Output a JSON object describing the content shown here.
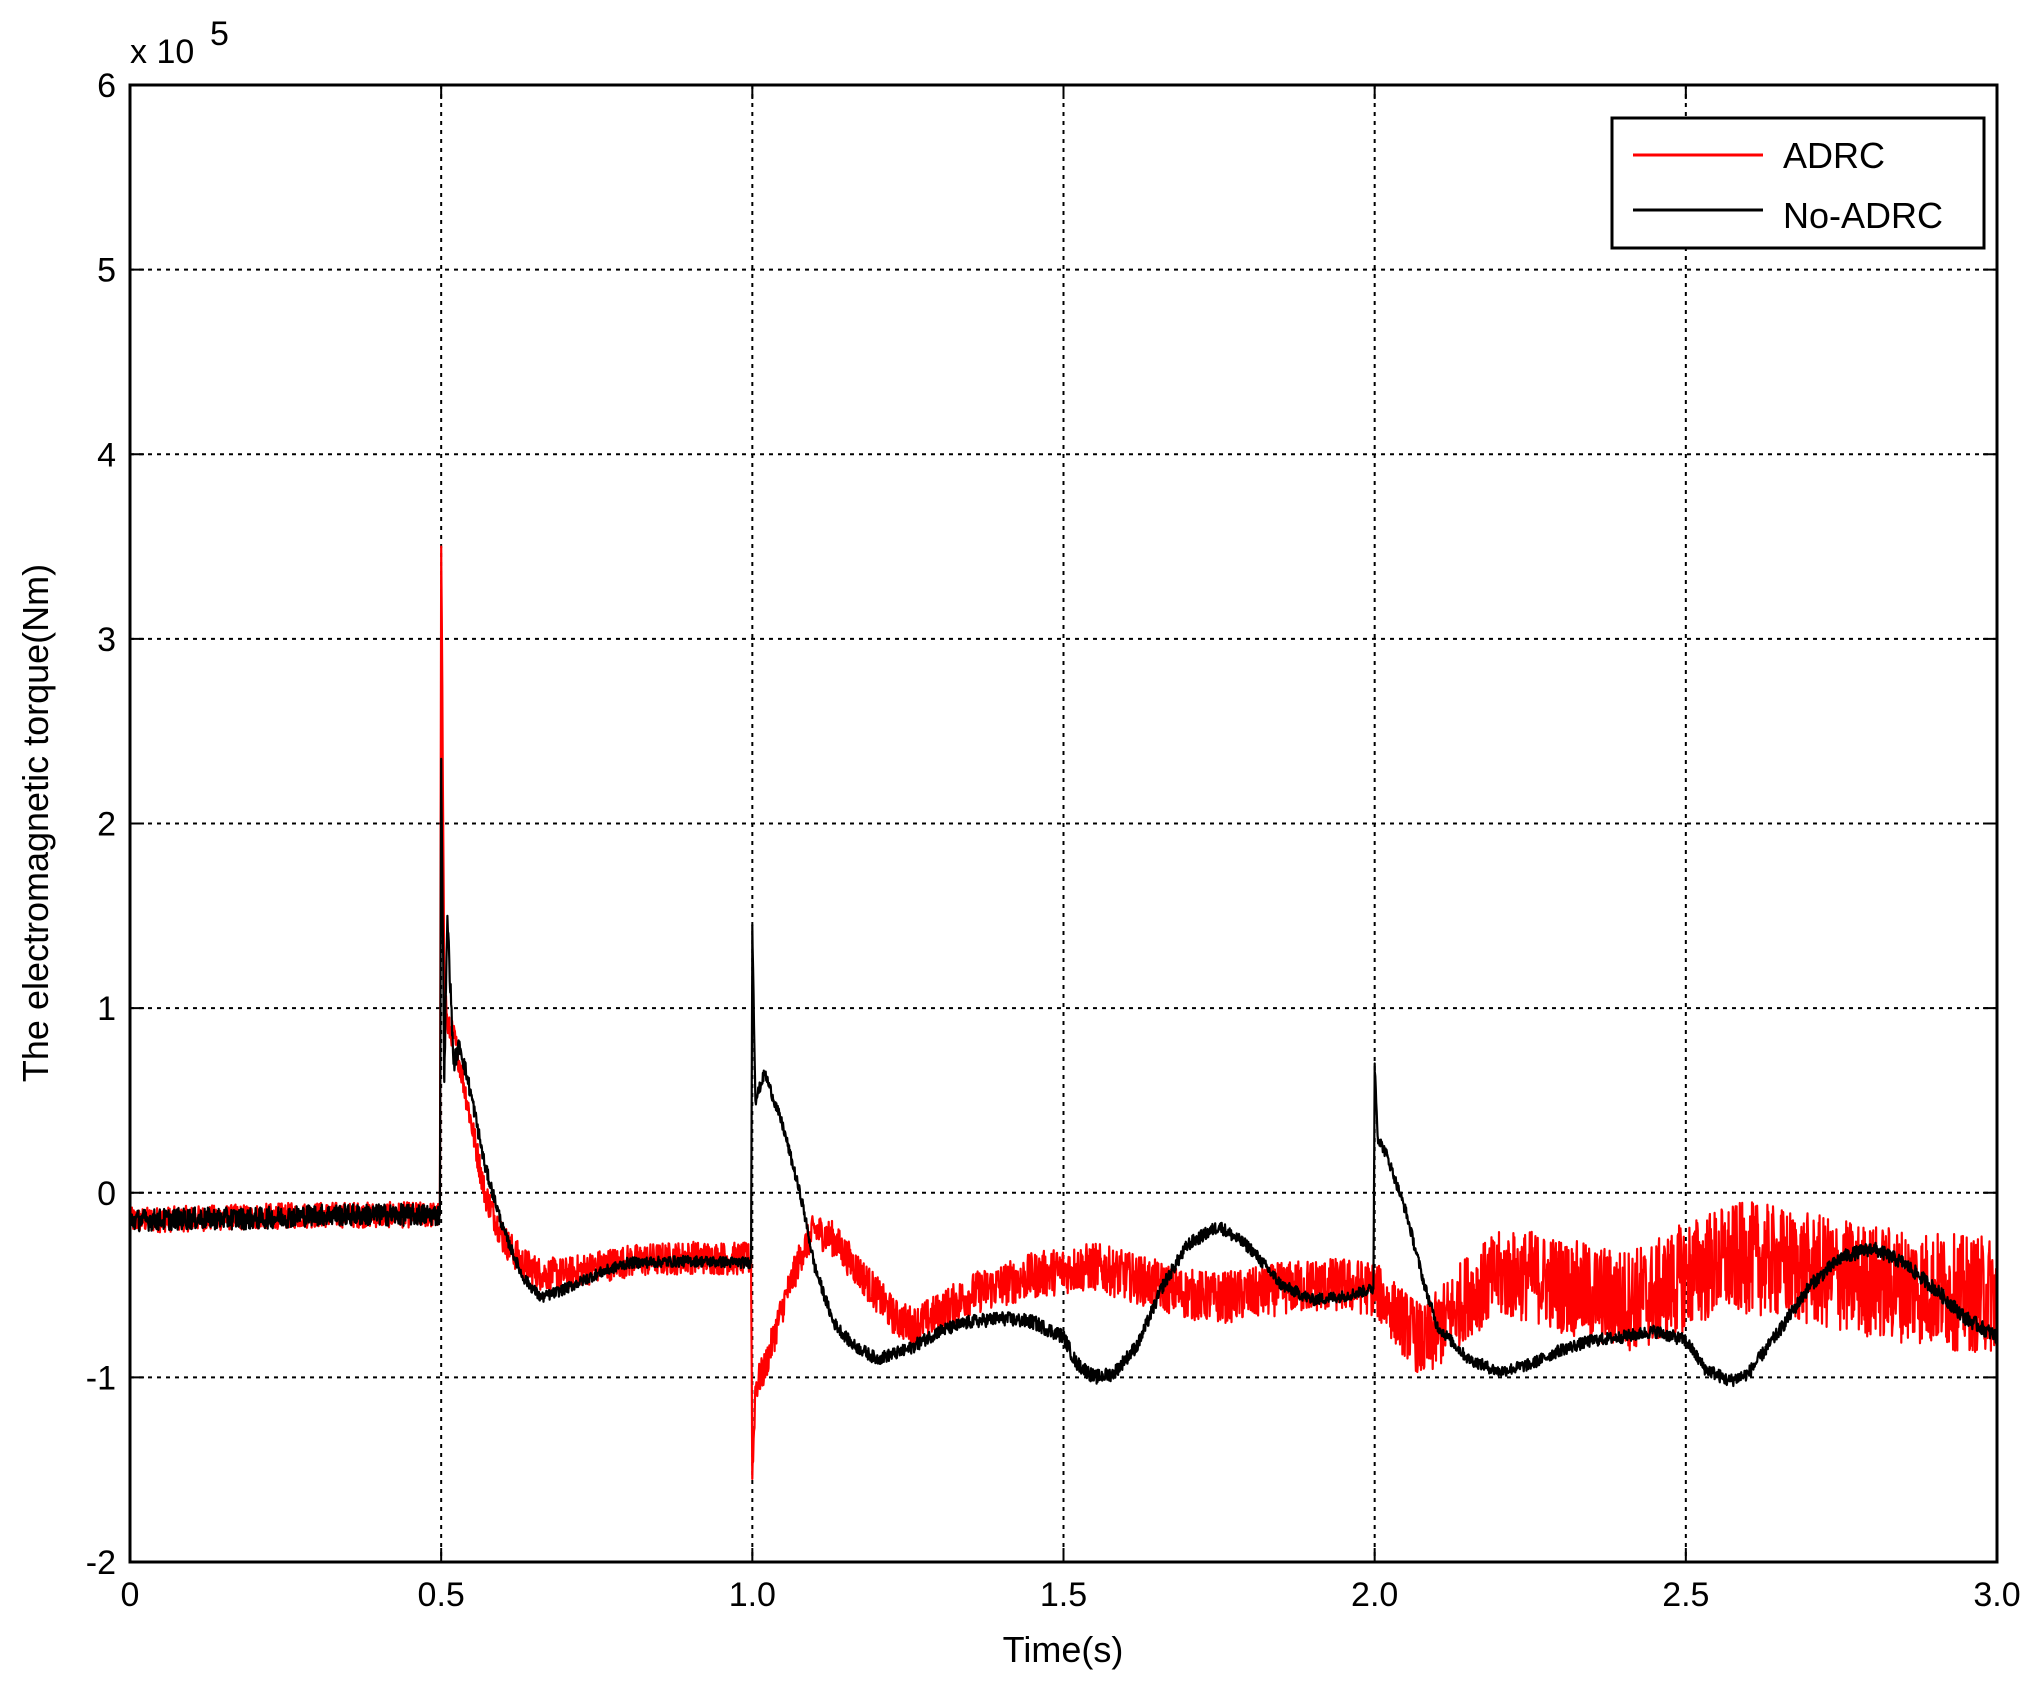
{
  "chart_data": {
    "type": "line",
    "title": "",
    "xlabel": "Time(s)",
    "ylabel": "The electromagnetic torque(Nm)",
    "y_multiplier_label": "x 10",
    "y_multiplier_exponent": "5",
    "xlim": [
      0,
      3
    ],
    "ylim": [
      -2,
      6
    ],
    "grid": true,
    "legend_position": "top-right",
    "x_ticks": [
      0,
      0.5,
      1.0,
      1.5,
      2.0,
      2.5,
      3.0
    ],
    "x_tick_labels": [
      "0",
      "0.5",
      "1.0",
      "1.5",
      "2.0",
      "2.5",
      "3.0"
    ],
    "y_ticks": [
      -2,
      -1,
      0,
      1,
      2,
      3,
      4,
      5,
      6
    ],
    "y_tick_labels": [
      "-2",
      "-1",
      "0",
      "1",
      "2",
      "3",
      "4",
      "5",
      "6"
    ],
    "series": [
      {
        "name": "ADRC",
        "color": "#ff0000",
        "points": [
          [
            0,
            -0.15
          ],
          [
            0.1,
            -0.14
          ],
          [
            0.2,
            -0.13
          ],
          [
            0.3,
            -0.12
          ],
          [
            0.4,
            -0.12
          ],
          [
            0.498,
            -0.12
          ],
          [
            0.5,
            3.5
          ],
          [
            0.505,
            1.2
          ],
          [
            0.51,
            0.9
          ],
          [
            0.52,
            0.85
          ],
          [
            0.53,
            0.7
          ],
          [
            0.55,
            0.35
          ],
          [
            0.57,
            0.0
          ],
          [
            0.6,
            -0.25
          ],
          [
            0.63,
            -0.38
          ],
          [
            0.66,
            -0.44
          ],
          [
            0.7,
            -0.44
          ],
          [
            0.75,
            -0.4
          ],
          [
            0.8,
            -0.37
          ],
          [
            0.9,
            -0.35
          ],
          [
            0.998,
            -0.36
          ],
          [
            1.0,
            -1.55
          ],
          [
            1.005,
            -1.05
          ],
          [
            1.02,
            -0.95
          ],
          [
            1.05,
            -0.6
          ],
          [
            1.08,
            -0.32
          ],
          [
            1.1,
            -0.2
          ],
          [
            1.13,
            -0.25
          ],
          [
            1.16,
            -0.38
          ],
          [
            1.2,
            -0.55
          ],
          [
            1.23,
            -0.68
          ],
          [
            1.26,
            -0.72
          ],
          [
            1.3,
            -0.65
          ],
          [
            1.35,
            -0.55
          ],
          [
            1.4,
            -0.5
          ],
          [
            1.45,
            -0.45
          ],
          [
            1.5,
            -0.42
          ],
          [
            1.55,
            -0.4
          ],
          [
            1.6,
            -0.45
          ],
          [
            1.65,
            -0.5
          ],
          [
            1.7,
            -0.55
          ],
          [
            1.75,
            -0.57
          ],
          [
            1.8,
            -0.55
          ],
          [
            1.85,
            -0.52
          ],
          [
            1.9,
            -0.5
          ],
          [
            1.95,
            -0.5
          ],
          [
            2.0,
            -0.52
          ],
          [
            2.04,
            -0.68
          ],
          [
            2.08,
            -0.82
          ],
          [
            2.1,
            -0.75
          ],
          [
            2.15,
            -0.55
          ],
          [
            2.2,
            -0.45
          ],
          [
            2.25,
            -0.45
          ],
          [
            2.3,
            -0.5
          ],
          [
            2.35,
            -0.55
          ],
          [
            2.4,
            -0.58
          ],
          [
            2.45,
            -0.55
          ],
          [
            2.5,
            -0.45
          ],
          [
            2.55,
            -0.38
          ],
          [
            2.6,
            -0.35
          ],
          [
            2.65,
            -0.38
          ],
          [
            2.7,
            -0.42
          ],
          [
            2.75,
            -0.45
          ],
          [
            2.8,
            -0.48
          ],
          [
            2.85,
            -0.5
          ],
          [
            2.9,
            -0.52
          ],
          [
            2.95,
            -0.55
          ],
          [
            3.0,
            -0.55
          ]
        ],
        "noise_amplitude": [
          [
            0,
            0.07
          ],
          [
            0.5,
            0.07
          ],
          [
            0.62,
            0.09
          ],
          [
            1.0,
            0.09
          ],
          [
            1.2,
            0.1
          ],
          [
            1.5,
            0.13
          ],
          [
            2.0,
            0.15
          ],
          [
            2.1,
            0.22
          ],
          [
            2.5,
            0.3
          ],
          [
            3.0,
            0.32
          ]
        ]
      },
      {
        "name": "No-ADRC",
        "color": "#000000",
        "points": [
          [
            0,
            -0.15
          ],
          [
            0.1,
            -0.14
          ],
          [
            0.2,
            -0.14
          ],
          [
            0.3,
            -0.12
          ],
          [
            0.4,
            -0.12
          ],
          [
            0.498,
            -0.12
          ],
          [
            0.5,
            2.35
          ],
          [
            0.505,
            0.6
          ],
          [
            0.51,
            1.5
          ],
          [
            0.52,
            0.7
          ],
          [
            0.53,
            0.8
          ],
          [
            0.55,
            0.5
          ],
          [
            0.57,
            0.15
          ],
          [
            0.6,
            -0.2
          ],
          [
            0.63,
            -0.45
          ],
          [
            0.66,
            -0.57
          ],
          [
            0.7,
            -0.52
          ],
          [
            0.75,
            -0.44
          ],
          [
            0.8,
            -0.38
          ],
          [
            0.9,
            -0.37
          ],
          [
            0.998,
            -0.38
          ],
          [
            1.0,
            1.45
          ],
          [
            1.005,
            0.5
          ],
          [
            1.02,
            0.65
          ],
          [
            1.05,
            0.35
          ],
          [
            1.08,
            -0.05
          ],
          [
            1.1,
            -0.4
          ],
          [
            1.13,
            -0.7
          ],
          [
            1.16,
            -0.82
          ],
          [
            1.2,
            -0.9
          ],
          [
            1.25,
            -0.85
          ],
          [
            1.3,
            -0.75
          ],
          [
            1.35,
            -0.7
          ],
          [
            1.4,
            -0.68
          ],
          [
            1.45,
            -0.7
          ],
          [
            1.5,
            -0.78
          ],
          [
            1.52,
            -0.92
          ],
          [
            1.55,
            -1.0
          ],
          [
            1.58,
            -0.98
          ],
          [
            1.62,
            -0.82
          ],
          [
            1.66,
            -0.5
          ],
          [
            1.7,
            -0.28
          ],
          [
            1.75,
            -0.18
          ],
          [
            1.8,
            -0.3
          ],
          [
            1.85,
            -0.5
          ],
          [
            1.9,
            -0.58
          ],
          [
            1.95,
            -0.56
          ],
          [
            1.998,
            -0.52
          ],
          [
            2.0,
            0.7
          ],
          [
            2.005,
            0.3
          ],
          [
            2.02,
            0.2
          ],
          [
            2.05,
            -0.1
          ],
          [
            2.08,
            -0.5
          ],
          [
            2.1,
            -0.72
          ],
          [
            2.15,
            -0.9
          ],
          [
            2.2,
            -0.97
          ],
          [
            2.25,
            -0.93
          ],
          [
            2.3,
            -0.85
          ],
          [
            2.35,
            -0.8
          ],
          [
            2.4,
            -0.78
          ],
          [
            2.45,
            -0.75
          ],
          [
            2.5,
            -0.8
          ],
          [
            2.53,
            -0.95
          ],
          [
            2.57,
            -1.02
          ],
          [
            2.6,
            -0.98
          ],
          [
            2.65,
            -0.75
          ],
          [
            2.7,
            -0.5
          ],
          [
            2.75,
            -0.35
          ],
          [
            2.8,
            -0.3
          ],
          [
            2.85,
            -0.38
          ],
          [
            2.9,
            -0.52
          ],
          [
            2.95,
            -0.68
          ],
          [
            3.0,
            -0.78
          ]
        ],
        "noise_amplitude": [
          [
            0,
            0.06
          ],
          [
            0.5,
            0.06
          ],
          [
            0.6,
            0.03
          ],
          [
            1.0,
            0.03
          ],
          [
            1.5,
            0.04
          ],
          [
            2.0,
            0.03
          ],
          [
            3.0,
            0.04
          ]
        ]
      }
    ]
  }
}
